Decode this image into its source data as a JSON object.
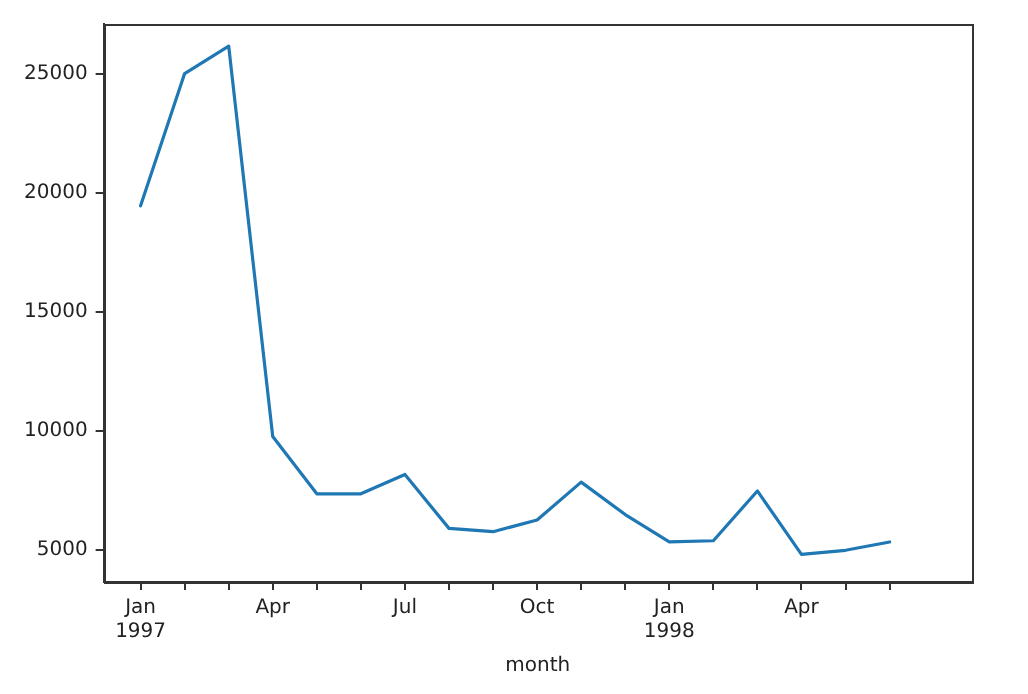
{
  "chart_data": {
    "type": "line",
    "xlabel": "month",
    "x": [
      "1997-01",
      "1997-02",
      "1997-03",
      "1997-04",
      "1997-05",
      "1997-06",
      "1997-07",
      "1997-08",
      "1997-09",
      "1997-10",
      "1997-11",
      "1997-12",
      "1998-01",
      "1998-02",
      "1998-03",
      "1998-04",
      "1998-05",
      "1998-06"
    ],
    "series": [
      {
        "color": "#1f77b4",
        "values": [
          19450,
          25000,
          26150,
          9770,
          7370,
          7370,
          8180,
          5920,
          5780,
          6270,
          7860,
          6500,
          5350,
          5400,
          7490,
          4830,
          5000,
          5350
        ]
      }
    ],
    "xlim": [
      "1996-12-06",
      "1998-07-28"
    ],
    "xticks": [
      {
        "value": "1997-01",
        "label": "Jan\n1997"
      },
      {
        "value": "1997-02",
        "label": null
      },
      {
        "value": "1997-03",
        "label": null
      },
      {
        "value": "1997-04",
        "label": "Apr"
      },
      {
        "value": "1997-05",
        "label": null
      },
      {
        "value": "1997-06",
        "label": null
      },
      {
        "value": "1997-07",
        "label": "Jul"
      },
      {
        "value": "1997-08",
        "label": null
      },
      {
        "value": "1997-09",
        "label": null
      },
      {
        "value": "1997-10",
        "label": "Oct"
      },
      {
        "value": "1997-11",
        "label": null
      },
      {
        "value": "1997-12",
        "label": null
      },
      {
        "value": "1998-01",
        "label": "Jan\n1998"
      },
      {
        "value": "1998-02",
        "label": null
      },
      {
        "value": "1998-03",
        "label": null
      },
      {
        "value": "1998-04",
        "label": "Apr"
      },
      {
        "value": "1998-05",
        "label": null
      },
      {
        "value": "1998-06",
        "label": null
      }
    ],
    "ylim": [
      3670,
      27080
    ],
    "yticks": [
      5000,
      10000,
      15000,
      20000,
      25000
    ],
    "grid": false,
    "legend": false,
    "marker": "none",
    "line_style": "solid"
  }
}
